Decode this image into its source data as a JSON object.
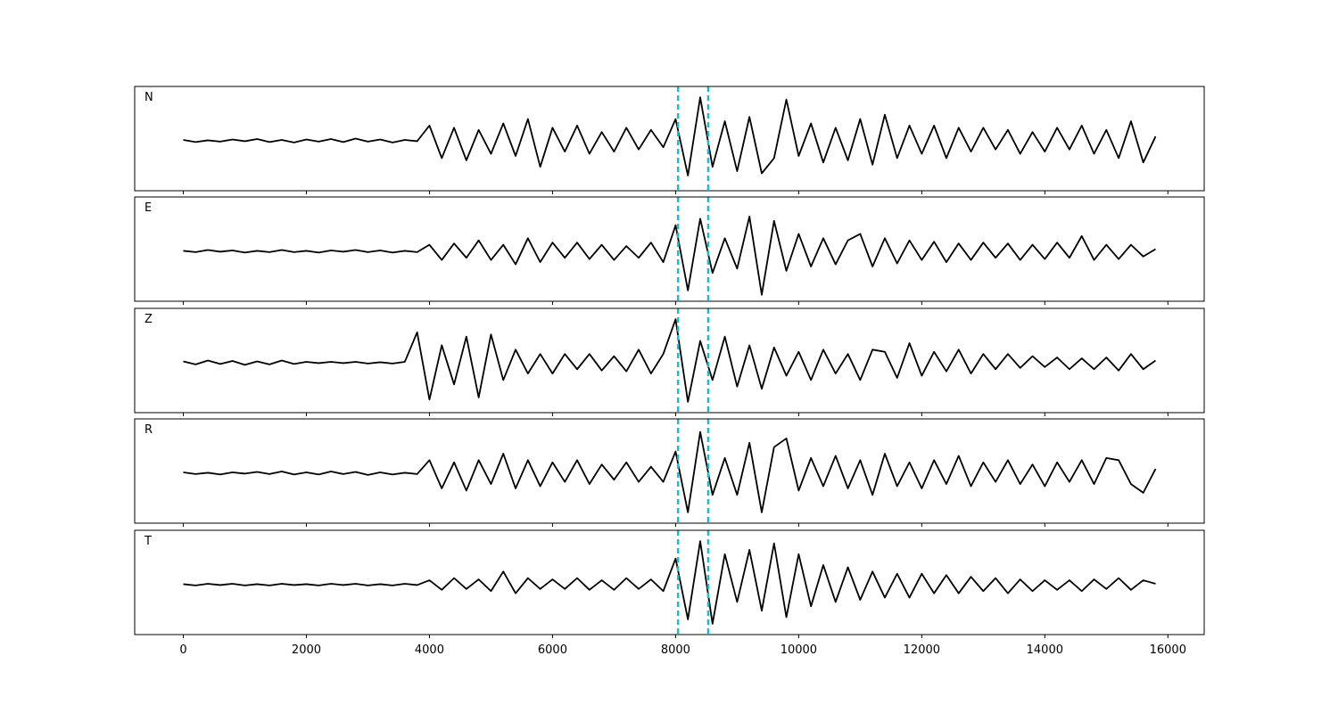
{
  "chart_data": {
    "type": "line",
    "x": [
      0,
      200,
      400,
      600,
      800,
      1000,
      1200,
      1400,
      1600,
      1800,
      2000,
      2200,
      2400,
      2600,
      2800,
      3000,
      3200,
      3400,
      3600,
      3800,
      4000,
      4200,
      4400,
      4600,
      4800,
      5000,
      5200,
      5400,
      5600,
      5800,
      6000,
      6200,
      6400,
      6600,
      6800,
      7000,
      7200,
      7400,
      7600,
      7800,
      8000,
      8200,
      8400,
      8600,
      8800,
      9000,
      9200,
      9400,
      9600,
      9800,
      10000,
      10200,
      10400,
      10600,
      10800,
      11000,
      11200,
      11400,
      11600,
      11800,
      12000,
      12200,
      12400,
      12600,
      12800,
      13000,
      13200,
      13400,
      13600,
      13800,
      14000,
      14200,
      14400,
      14600,
      14800,
      15000,
      15200,
      15400,
      15600,
      15800
    ],
    "xlim": [
      -790,
      16590
    ],
    "xticks": [
      0,
      2000,
      4000,
      6000,
      8000,
      10000,
      12000,
      14000,
      16000
    ],
    "ylim": [
      -1.15,
      1.25
    ],
    "vlines": [
      8040,
      8530
    ],
    "vline_color": "#17becf",
    "series": [
      {
        "name": "N",
        "color": "#000000",
        "values": [
          0.02,
          -0.03,
          0.01,
          -0.02,
          0.03,
          -0.01,
          0.04,
          -0.03,
          0.02,
          -0.04,
          0.03,
          -0.02,
          0.04,
          -0.03,
          0.05,
          -0.02,
          0.03,
          -0.04,
          0.02,
          -0.01,
          0.35,
          -0.4,
          0.3,
          -0.45,
          0.25,
          -0.3,
          0.4,
          -0.35,
          0.5,
          -0.6,
          0.3,
          -0.25,
          0.35,
          -0.3,
          0.2,
          -0.25,
          0.3,
          -0.2,
          0.25,
          -0.15,
          0.5,
          -0.8,
          1.0,
          -0.6,
          0.45,
          -0.7,
          0.55,
          -0.75,
          -0.4,
          0.95,
          -0.35,
          0.4,
          -0.5,
          0.3,
          -0.45,
          0.5,
          -0.55,
          0.6,
          -0.4,
          0.35,
          -0.3,
          0.35,
          -0.4,
          0.3,
          -0.25,
          0.3,
          -0.2,
          0.25,
          -0.3,
          0.2,
          -0.25,
          0.3,
          -0.2,
          0.35,
          -0.3,
          0.25,
          -0.4,
          0.45,
          -0.5,
          0.1
        ]
      },
      {
        "name": "E",
        "color": "#000000",
        "values": [
          0.01,
          -0.02,
          0.03,
          -0.01,
          0.02,
          -0.03,
          0.01,
          -0.02,
          0.03,
          -0.02,
          0.01,
          -0.03,
          0.02,
          -0.01,
          0.03,
          -0.02,
          0.02,
          -0.03,
          0.01,
          -0.02,
          0.15,
          -0.2,
          0.18,
          -0.15,
          0.25,
          -0.2,
          0.15,
          -0.3,
          0.3,
          -0.25,
          0.2,
          -0.15,
          0.2,
          -0.18,
          0.15,
          -0.2,
          0.12,
          -0.15,
          0.2,
          -0.25,
          0.6,
          -0.9,
          0.75,
          -0.5,
          0.3,
          -0.4,
          0.8,
          -1.0,
          0.7,
          -0.45,
          0.4,
          -0.35,
          0.3,
          -0.3,
          0.25,
          0.4,
          -0.35,
          0.3,
          -0.28,
          0.25,
          -0.2,
          0.22,
          -0.25,
          0.18,
          -0.2,
          0.2,
          -0.15,
          0.18,
          -0.2,
          0.15,
          -0.18,
          0.2,
          -0.15,
          0.35,
          -0.2,
          0.15,
          -0.18,
          0.15,
          -0.12,
          0.05
        ]
      },
      {
        "name": "Z",
        "color": "#000000",
        "values": [
          0.03,
          -0.04,
          0.05,
          -0.03,
          0.04,
          -0.05,
          0.03,
          -0.04,
          0.05,
          -0.03,
          0.02,
          -0.01,
          0.02,
          -0.01,
          0.02,
          -0.02,
          0.01,
          -0.02,
          0.02,
          0.7,
          -0.85,
          0.4,
          -0.5,
          0.6,
          -0.8,
          0.65,
          -0.4,
          0.3,
          -0.25,
          0.2,
          -0.25,
          0.2,
          -0.15,
          0.2,
          -0.18,
          0.15,
          -0.2,
          0.3,
          -0.25,
          0.2,
          1.0,
          -0.9,
          0.5,
          -0.4,
          0.6,
          -0.55,
          0.4,
          -0.6,
          0.35,
          -0.3,
          0.25,
          -0.4,
          0.3,
          -0.25,
          0.2,
          -0.4,
          0.3,
          0.25,
          -0.35,
          0.45,
          -0.3,
          0.25,
          -0.2,
          0.3,
          -0.25,
          0.2,
          -0.15,
          0.2,
          -0.12,
          0.15,
          -0.1,
          0.12,
          -0.15,
          0.1,
          -0.15,
          0.12,
          -0.18,
          0.2,
          -0.15,
          0.05
        ]
      },
      {
        "name": "R",
        "color": "#000000",
        "values": [
          0.02,
          -0.02,
          0.01,
          -0.03,
          0.02,
          -0.01,
          0.03,
          -0.02,
          0.04,
          -0.03,
          0.02,
          -0.03,
          0.04,
          -0.02,
          0.03,
          -0.04,
          0.02,
          -0.03,
          0.01,
          -0.02,
          0.3,
          -0.35,
          0.25,
          -0.4,
          0.3,
          -0.25,
          0.45,
          -0.35,
          0.3,
          -0.3,
          0.25,
          -0.2,
          0.3,
          -0.25,
          0.2,
          -0.15,
          0.25,
          -0.2,
          0.15,
          -0.2,
          0.5,
          -0.9,
          0.95,
          -0.5,
          0.35,
          -0.5,
          0.7,
          -0.9,
          0.6,
          0.8,
          -0.4,
          0.35,
          -0.3,
          0.4,
          -0.35,
          0.3,
          -0.5,
          0.45,
          -0.3,
          0.25,
          -0.35,
          0.3,
          -0.25,
          0.4,
          -0.3,
          0.25,
          -0.2,
          0.3,
          -0.25,
          0.2,
          -0.3,
          0.25,
          -0.2,
          0.3,
          -0.25,
          0.35,
          0.3,
          -0.25,
          -0.45,
          0.1
        ]
      },
      {
        "name": "T",
        "color": "#000000",
        "values": [
          0.01,
          -0.02,
          0.02,
          -0.01,
          0.02,
          -0.02,
          0.01,
          -0.02,
          0.02,
          -0.01,
          0.01,
          -0.02,
          0.02,
          -0.01,
          0.02,
          -0.02,
          0.01,
          -0.02,
          0.02,
          -0.01,
          0.1,
          -0.12,
          0.15,
          -0.1,
          0.12,
          -0.15,
          0.3,
          -0.2,
          0.15,
          -0.1,
          0.12,
          -0.1,
          0.15,
          -0.12,
          0.1,
          -0.12,
          0.15,
          -0.1,
          0.12,
          -0.15,
          0.6,
          -0.8,
          1.0,
          -0.9,
          0.7,
          -0.4,
          0.8,
          -0.6,
          0.95,
          -0.75,
          0.7,
          -0.5,
          0.45,
          -0.4,
          0.4,
          -0.35,
          0.3,
          -0.3,
          0.25,
          -0.3,
          0.25,
          -0.2,
          0.22,
          -0.2,
          0.18,
          -0.15,
          0.15,
          -0.2,
          0.12,
          -0.15,
          0.1,
          -0.12,
          0.1,
          -0.15,
          0.12,
          -0.1,
          0.15,
          -0.12,
          0.1,
          0.02
        ]
      }
    ]
  }
}
